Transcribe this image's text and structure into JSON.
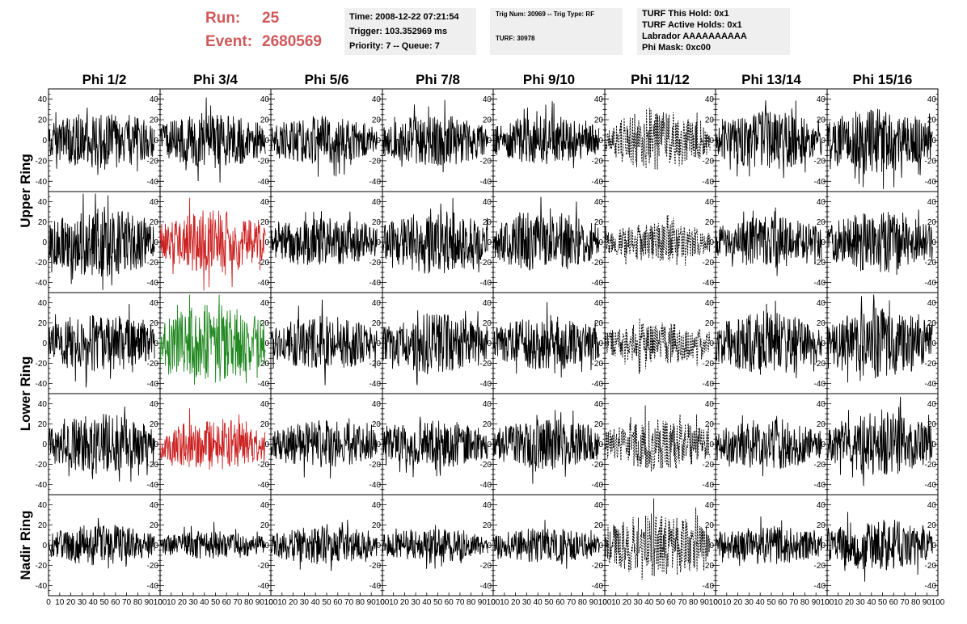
{
  "header": {
    "run_label": "Run:",
    "run_value": "25",
    "event_label": "Event:",
    "event_value": "2680569"
  },
  "info_box_1": {
    "time": "Time: 2008-12-22 07:21:54",
    "trigger": "Trigger: 103.352969 ms",
    "priority_queue": "Priority: 7 -- Queue: 7"
  },
  "info_box_2": {
    "trig_num_type": "Trig Num: 30969 -- Trig Type: RF",
    "turf": "TURF: 30978"
  },
  "info_box_3": {
    "turf_this_hold": "TURF This Hold: 0x1",
    "turf_active_holds": "TURF Active Holds: 0x1",
    "labrador": "Labrador AAAAAAAAAA",
    "phi_mask": "Phi Mask: 0xc00"
  },
  "colors": {
    "trace_default": "#000000",
    "trace_red": "#cc2222",
    "trace_green": "#228822",
    "header_text": "#d0575a",
    "info_box_bg": "#efefef"
  },
  "chart_data": {
    "type": "line",
    "description_of_grid": "5 ring rows x 8 phi columns of waveform panels",
    "columns": [
      "Phi 1/2",
      "Phi 3/4",
      "Phi 5/6",
      "Phi 7/8",
      "Phi 9/10",
      "Phi 11/12",
      "Phi 13/14",
      "Phi 15/16"
    ],
    "row_labels": [
      "Upper Ring",
      "Lower Ring",
      "Nadir Ring"
    ],
    "xlim": [
      0,
      100
    ],
    "ylim": [
      -50,
      50
    ],
    "x_ticks": [
      0,
      10,
      20,
      30,
      40,
      50,
      60,
      70,
      80,
      90,
      100
    ],
    "y_ticks": [
      -40,
      -20,
      0,
      20,
      40
    ],
    "grid": false,
    "trace_length_x": 95,
    "panels": [
      [
        {
          "style": "solid",
          "color": "black",
          "amplitude": 18
        },
        {
          "style": "solid",
          "color": "black",
          "amplitude": 17
        },
        {
          "style": "solid",
          "color": "black",
          "amplitude": 15
        },
        {
          "style": "solid",
          "color": "black",
          "amplitude": 16
        },
        {
          "style": "solid",
          "color": "black",
          "amplitude": 15
        },
        {
          "style": "dashed",
          "color": "black",
          "amplitude": 18
        },
        {
          "style": "solid",
          "color": "black",
          "amplitude": 18
        },
        {
          "style": "solid",
          "color": "black",
          "amplitude": 20
        }
      ],
      [
        {
          "style": "solid",
          "color": "black",
          "amplitude": 22
        },
        {
          "style": "solid",
          "color": "red",
          "amplitude": 20
        },
        {
          "style": "solid",
          "color": "black",
          "amplitude": 16
        },
        {
          "style": "solid",
          "color": "black",
          "amplitude": 20
        },
        {
          "style": "solid",
          "color": "black",
          "amplitude": 19
        },
        {
          "style": "dashed",
          "color": "black",
          "amplitude": 12
        },
        {
          "style": "solid",
          "color": "black",
          "amplitude": 16
        },
        {
          "style": "solid",
          "color": "black",
          "amplitude": 19
        }
      ],
      [
        {
          "style": "solid",
          "color": "black",
          "amplitude": 18
        },
        {
          "style": "solid",
          "color": "green",
          "amplitude": 24
        },
        {
          "style": "solid",
          "color": "black",
          "amplitude": 17
        },
        {
          "style": "solid",
          "color": "black",
          "amplitude": 19
        },
        {
          "style": "solid",
          "color": "black",
          "amplitude": 17
        },
        {
          "style": "dashed",
          "color": "black",
          "amplitude": 13
        },
        {
          "style": "solid",
          "color": "black",
          "amplitude": 20
        },
        {
          "style": "solid",
          "color": "black",
          "amplitude": 22
        }
      ],
      [
        {
          "style": "solid",
          "color": "black",
          "amplitude": 19
        },
        {
          "style": "solid",
          "color": "red",
          "amplitude": 16
        },
        {
          "style": "solid",
          "color": "black",
          "amplitude": 15
        },
        {
          "style": "solid",
          "color": "black",
          "amplitude": 15
        },
        {
          "style": "solid",
          "color": "black",
          "amplitude": 16
        },
        {
          "style": "dashed",
          "color": "black",
          "amplitude": 16
        },
        {
          "style": "solid",
          "color": "black",
          "amplitude": 16
        },
        {
          "style": "solid",
          "color": "black",
          "amplitude": 20
        }
      ],
      [
        {
          "style": "solid",
          "color": "black",
          "amplitude": 13
        },
        {
          "style": "solid",
          "color": "black",
          "amplitude": 9
        },
        {
          "style": "solid",
          "color": "black",
          "amplitude": 12
        },
        {
          "style": "solid",
          "color": "black",
          "amplitude": 11
        },
        {
          "style": "solid",
          "color": "black",
          "amplitude": 11
        },
        {
          "style": "dashed",
          "color": "black",
          "amplitude": 20
        },
        {
          "style": "solid",
          "color": "black",
          "amplitude": 12
        },
        {
          "style": "solid",
          "color": "black",
          "amplitude": 16
        }
      ]
    ]
  }
}
